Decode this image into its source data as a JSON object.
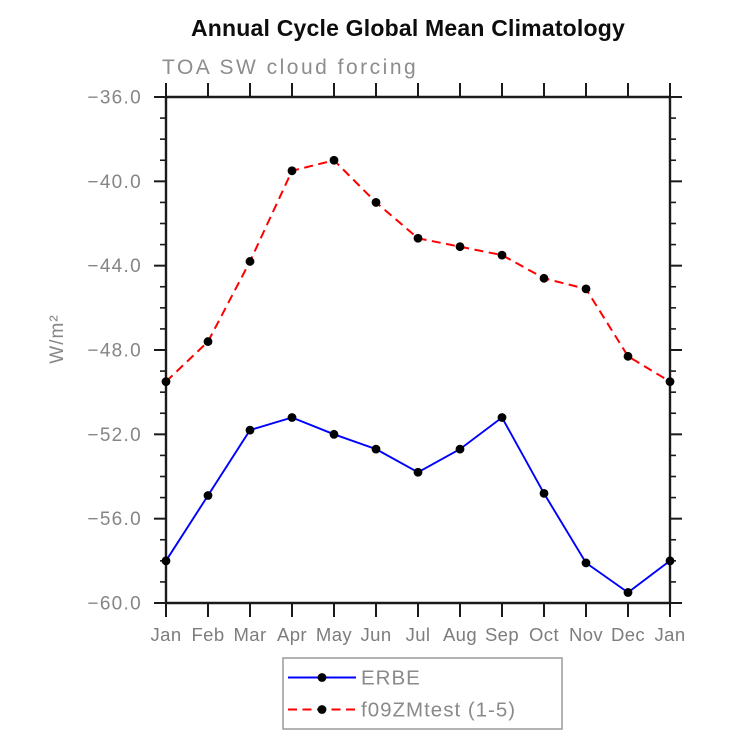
{
  "chart_data": {
    "type": "line",
    "title": "Annual Cycle Global Mean Climatology",
    "subtitle": "TOA SW cloud forcing",
    "ylabel": "W/m²",
    "xlabel": "",
    "categories": [
      "Jan",
      "Feb",
      "Mar",
      "Apr",
      "May",
      "Jun",
      "Jul",
      "Aug",
      "Sep",
      "Oct",
      "Nov",
      "Dec",
      "Jan"
    ],
    "series": [
      {
        "name": "ERBE",
        "color": "#0000ff",
        "line_style": "solid",
        "marker": "filled-circle",
        "marker_color": "#000000",
        "values": [
          -58.0,
          -54.9,
          -51.8,
          -51.2,
          -52.0,
          -52.7,
          -53.8,
          -52.7,
          -51.2,
          -54.8,
          -58.1,
          -59.5,
          -58.0
        ]
      },
      {
        "name": "f09ZMtest (1-5)",
        "color": "#ff0000",
        "line_style": "dashed",
        "marker": "filled-circle",
        "marker_color": "#000000",
        "values": [
          -49.5,
          -47.6,
          -43.8,
          -39.5,
          -39.0,
          -41.0,
          -42.7,
          -43.1,
          -43.5,
          -44.6,
          -45.1,
          -48.3,
          -49.5
        ]
      }
    ],
    "ylim": [
      -60.0,
      -36.0
    ],
    "ytick_values": [
      -36,
      -40,
      -44,
      -48,
      -52,
      -56,
      -60
    ],
    "ytick_labels": [
      "−36.0",
      "−40.0",
      "−44.0",
      "−48.0",
      "−52.0",
      "−56.0",
      "−60.0"
    ],
    "ytick_minor_step": 1.0,
    "grid": false,
    "legend_position": "bottom-center"
  },
  "styles": {
    "axis_color": "#1a1a1a",
    "tick_label_color": "#858585",
    "title_color": "#0d0d0d",
    "subtitle_color": "#8d8d8d",
    "legend_border_color": "#9a9a9a"
  }
}
